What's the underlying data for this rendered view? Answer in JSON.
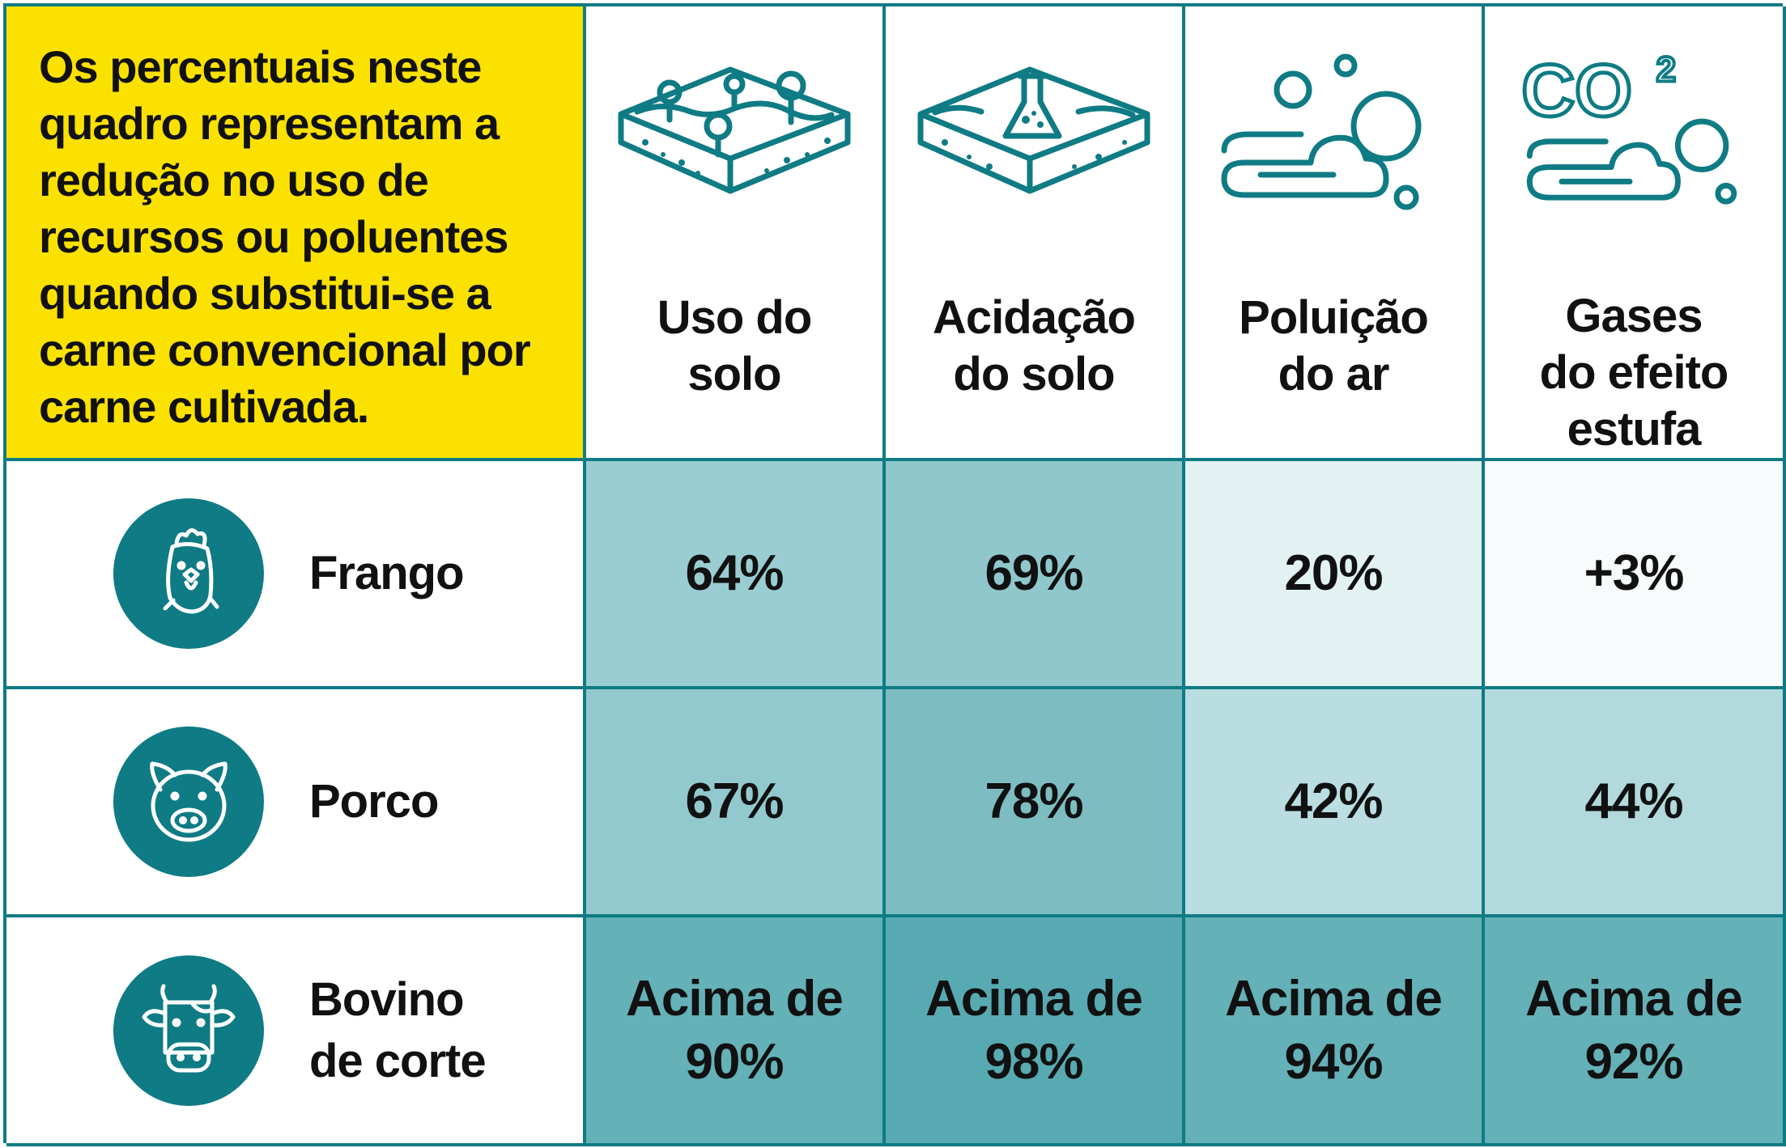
{
  "intro_text": "Os percentuais neste quadro representam a redução no uso de recursos ou poluentes quando substitui-se a carne convencional por carne cultivada.",
  "columns": [
    {
      "label": "Uso do\nsolo",
      "icon": "soil-plants-icon"
    },
    {
      "label": "Acidação\ndo solo",
      "icon": "soil-flask-icon"
    },
    {
      "label": "Poluição\ndo ar",
      "icon": "air-pollution-icon"
    },
    {
      "label": "Gases\ndo efeito\nestufa",
      "icon": "co2-cloud-icon"
    }
  ],
  "icon_text": {
    "co2": "CO",
    "co2_super": "2"
  },
  "rows": [
    {
      "label": "Frango",
      "icon": "chicken-icon",
      "values": [
        "64%",
        "69%",
        "20%",
        "+3%"
      ]
    },
    {
      "label": "Porco",
      "icon": "pig-icon",
      "values": [
        "67%",
        "78%",
        "42%",
        "44%"
      ]
    },
    {
      "label": "Bovino\nde corte",
      "icon": "cow-icon",
      "values": [
        "Acima de\n90%",
        "Acima de\n98%",
        "Acima de\n94%",
        "Acima de\n92%"
      ]
    }
  ],
  "colors": {
    "intro_bg": "#fbe100",
    "accent": "#0f7b84",
    "cell_fills": [
      [
        "#99cdd1",
        "#8fc7cc",
        "#e2f1f2",
        "#f7fbfb"
      ],
      [
        "#92c9ce",
        "#7dbdc2",
        "#b9dde0",
        "#b2d9dc"
      ],
      [
        "#64b1b8",
        "#58aab2",
        "#64b1b8",
        "#64b1b8"
      ]
    ]
  },
  "chart_data": {
    "type": "table",
    "columns": [
      "Uso do solo",
      "Acidação do solo",
      "Poluição do ar",
      "Gases do efeito estufa"
    ],
    "rows": [
      "Frango",
      "Porco",
      "Bovino de corte"
    ],
    "values": [
      [
        "64%",
        "69%",
        "20%",
        "+3%"
      ],
      [
        "67%",
        "78%",
        "42%",
        "44%"
      ],
      [
        "Acima de 90%",
        "Acima de 98%",
        "Acima de 94%",
        "Acima de 92%"
      ]
    ]
  }
}
